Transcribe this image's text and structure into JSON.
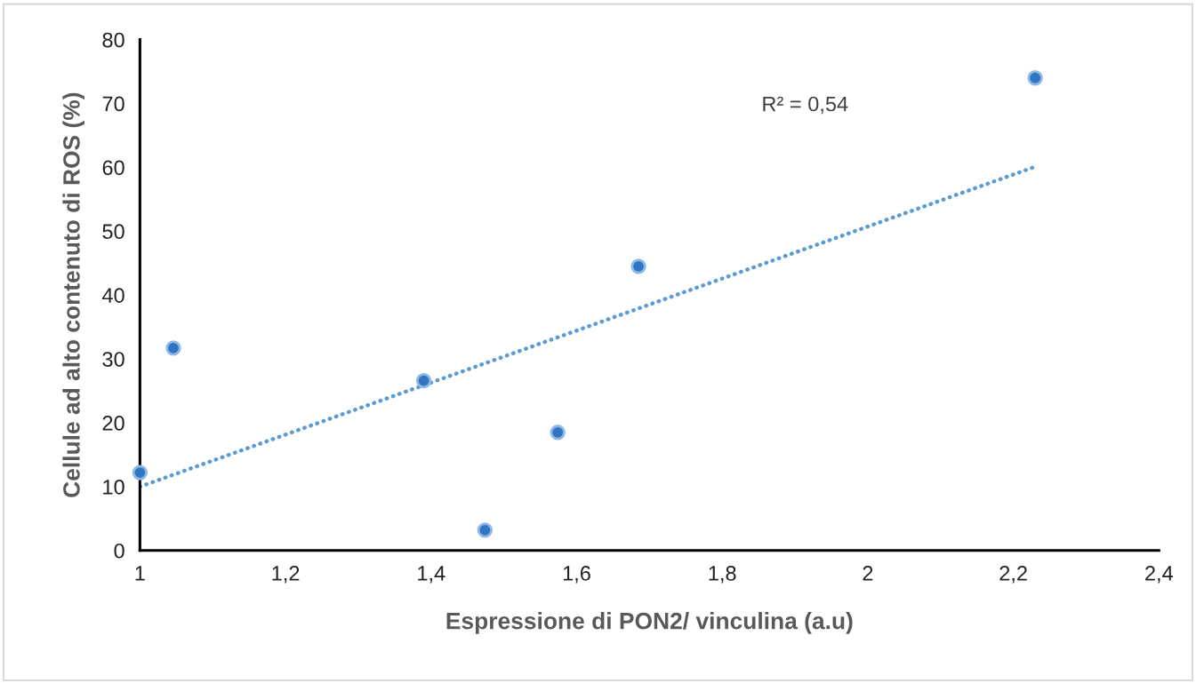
{
  "chart_data": {
    "type": "scatter",
    "xlabel": "Espressione di PON2/ vinculina (a.u)",
    "ylabel": "Cellule ad alto contenuto di ROS (%)",
    "annotations": [
      "R² = 0,54"
    ],
    "xlim": [
      1,
      2.4
    ],
    "xticks": [
      {
        "value": 1,
        "label": "1"
      },
      {
        "value": 1.2,
        "label": "1,2"
      },
      {
        "value": 1.4,
        "label": "1,4"
      },
      {
        "value": 1.6,
        "label": "1,6"
      },
      {
        "value": 1.8,
        "label": "1,8"
      },
      {
        "value": 2,
        "label": "2"
      },
      {
        "value": 2.2,
        "label": "2,2"
      },
      {
        "value": 2.4,
        "label": "2,4"
      }
    ],
    "ylim": [
      0,
      80
    ],
    "yticks": [
      0,
      10,
      20,
      30,
      40,
      50,
      60,
      70,
      80
    ],
    "grid": false,
    "series": [
      {
        "color": "#2f75c2",
        "marker": "circle",
        "x": [
          1.0,
          1.046,
          1.39,
          1.474,
          1.574,
          1.685,
          2.23
        ],
        "values": [
          12.2,
          31.7,
          26.6,
          3.2,
          18.5,
          44.5,
          74.0
        ]
      },
      {
        "type": "line",
        "color": "#5b9bd5",
        "line_style": "dotted",
        "marker": "none",
        "x": [
          1.0,
          2.23
        ],
        "values": [
          10.0,
          60.1
        ]
      }
    ]
  }
}
